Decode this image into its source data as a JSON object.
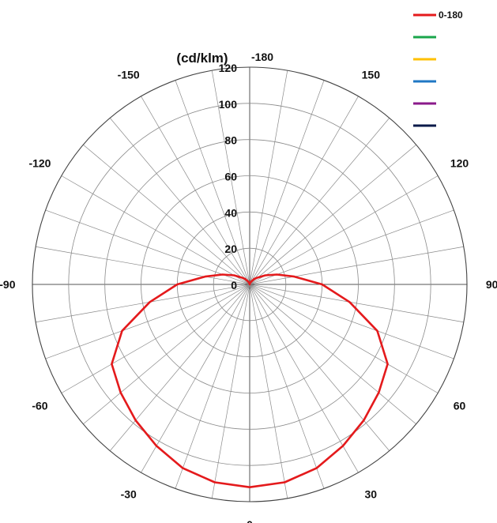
{
  "chart_data": {
    "type": "polar-line",
    "unit_label": "(cd/klm)",
    "radial_ticks": [
      0,
      20,
      40,
      60,
      80,
      100,
      120
    ],
    "radial_range": [
      0,
      120
    ],
    "angle_labels": [
      {
        "angle": -180,
        "label": "-180"
      },
      {
        "angle": -150,
        "label": "-150"
      },
      {
        "angle": -120,
        "label": "-120"
      },
      {
        "angle": -90,
        "label": "-90"
      },
      {
        "angle": -60,
        "label": "-60"
      },
      {
        "angle": -30,
        "label": "-30"
      },
      {
        "angle": 0,
        "label": "0"
      },
      {
        "angle": 30,
        "label": "30"
      },
      {
        "angle": 60,
        "label": "60"
      },
      {
        "angle": 90,
        "label": "90"
      },
      {
        "angle": 120,
        "label": "120"
      },
      {
        "angle": 150,
        "label": "150"
      }
    ],
    "grid_spoke_step_deg": 10,
    "legend_position": "top-right",
    "legend": [
      {
        "label": "0-180",
        "color": "#e41a1c"
      },
      {
        "label": "",
        "color": "#1aa64b"
      },
      {
        "label": "",
        "color": "#ffc000"
      },
      {
        "label": "",
        "color": "#1f77c4"
      },
      {
        "label": "",
        "color": "#8b1a8b"
      },
      {
        "label": "",
        "color": "#0a1a4a"
      }
    ],
    "series": [
      {
        "name": "0-180",
        "color": "#e41a1c",
        "angles": [
          0,
          10,
          20,
          30,
          40,
          50,
          60,
          70,
          80,
          90,
          100,
          110,
          120,
          130,
          140,
          150,
          160,
          170,
          180
        ],
        "values": [
          112,
          111,
          108,
          103,
          98,
          93,
          88,
          75,
          56,
          40,
          25,
          16,
          10,
          6,
          4,
          2,
          1,
          0.5,
          0
        ]
      }
    ]
  }
}
